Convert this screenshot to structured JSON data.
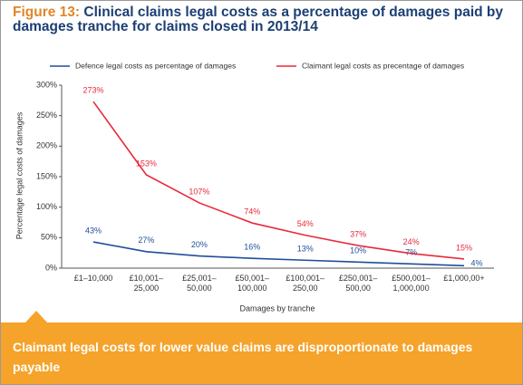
{
  "chart_data": {
    "type": "line",
    "figure_label": "Figure 13:",
    "title": "Clinical claims legal costs as a percentage of damages paid by damages tranche for claims closed in 2013/14",
    "categories": [
      "£1–10,000",
      "£10,001–\n25,000",
      "£25,001–\n50,000",
      "£50,001–\n100,000",
      "£100,001–\n250,00",
      "£250,001–\n500,00",
      "£500,001–\n1,000,000",
      "£1,000,00+"
    ],
    "series": [
      {
        "name": "Defence legal costs as percentage of damages",
        "color": "#1f4e9a",
        "values": [
          43,
          27,
          20,
          16,
          13,
          10,
          7,
          4
        ],
        "value_labels": [
          "43%",
          "27%",
          "20%",
          "16%",
          "13%",
          "10%",
          "7%",
          "4%"
        ]
      },
      {
        "name": "Claimant legal costs as precentage of damages",
        "color": "#e8293a",
        "values": [
          273,
          153,
          107,
          74,
          54,
          37,
          24,
          15
        ],
        "value_labels": [
          "273%",
          "153%",
          "107%",
          "74%",
          "54%",
          "37%",
          "24%",
          "15%"
        ]
      }
    ],
    "ylim": [
      0,
      300
    ],
    "yticks": [
      {
        "value": 0,
        "label": "0%"
      },
      {
        "value": 50,
        "label": "50%"
      },
      {
        "value": 100,
        "label": "100%"
      },
      {
        "value": 150,
        "label": "150%"
      },
      {
        "value": 200,
        "label": "200%"
      },
      {
        "value": 250,
        "label": "250%"
      },
      {
        "value": 300,
        "label": "300%"
      }
    ],
    "y_label": "Percentage legal costs of damages",
    "x_label": "Damages by tranche",
    "banner": "Claimant legal costs for lower value claims are disproportionate to damages payable",
    "legend": "top"
  }
}
